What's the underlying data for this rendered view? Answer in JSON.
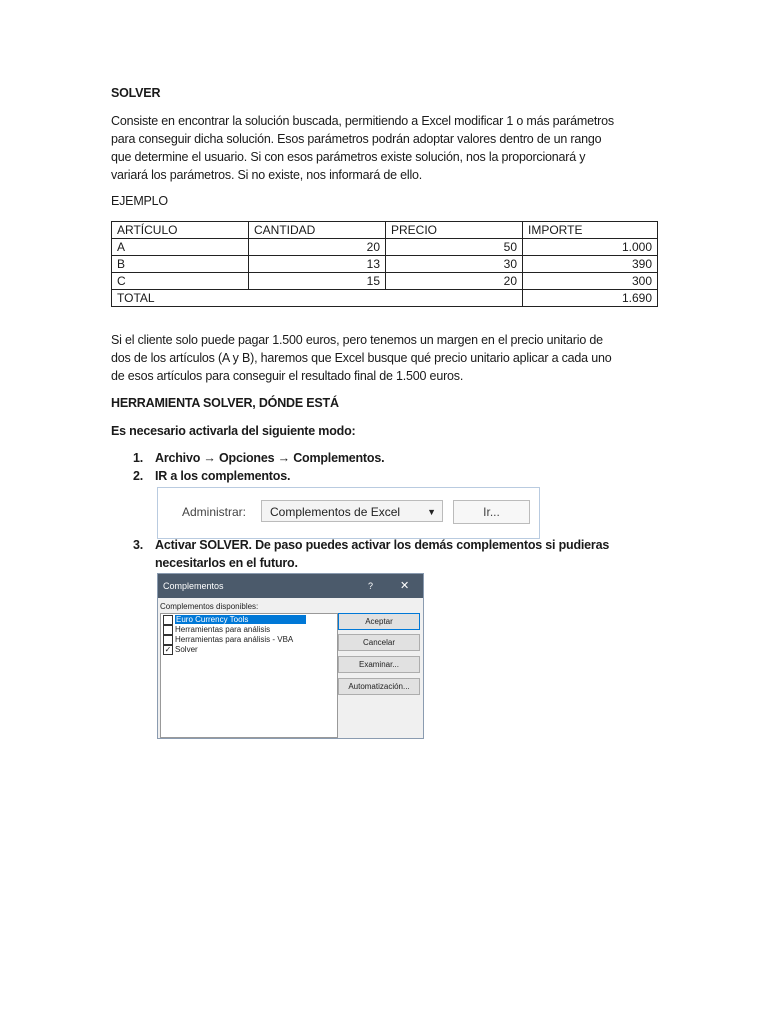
{
  "title": "SOLVER",
  "intro": [
    "Consiste en encontrar la solución buscada, permitiendo a Excel modificar 1 o más parámetros",
    "para conseguir dicha solución. Esos parámetros podrán adoptar valores dentro de un rango",
    "que determine el usuario. Si con esos parámetros existe solución, nos la proporcionará y",
    "variará los parámetros. Si no existe, nos informará de ello."
  ],
  "example_heading": "EJEMPLO",
  "table": {
    "headers": [
      "ARTÍCULO",
      "CANTIDAD",
      "PRECIO",
      "IMPORTE"
    ],
    "rows": [
      [
        "A",
        "20",
        "50",
        "1.000"
      ],
      [
        "B",
        "13",
        "30",
        "390"
      ],
      [
        "C",
        "15",
        "20",
        "300"
      ]
    ],
    "total_label": "TOTAL",
    "total_value": "1.690"
  },
  "scenario": [
    "Si el cliente solo puede pagar 1.500 euros, pero tenemos un margen en el precio unitario de",
    "dos de los artículos (A y B), haremos que Excel busque qué precio unitario aplicar a cada uno",
    "de esos artículos para conseguir el resultado final de 1.500 euros."
  ],
  "tool_heading": "HERRAMIENTA SOLVER, DÓNDE ESTÁ",
  "activate_intro": "Es necesario activarla del siguiente modo:",
  "steps": [
    {
      "num": "1.",
      "text": "Archivo → Opciones → Complementos."
    },
    {
      "num": "2.",
      "text": "IR a los complementos."
    },
    {
      "num": "3.",
      "text": "Activar SOLVER. De paso puedes activar los demás complementos si pudieras",
      "text2": "necesitarlos en el futuro."
    }
  ],
  "admin_bar": {
    "label": "Administrar:",
    "select_value": "Complementos de Excel",
    "go_button": "Ir..."
  },
  "dialog": {
    "title": "Complementos",
    "help": "?",
    "close": "✕",
    "list_label": "Complementos disponibles:",
    "items": [
      {
        "label": "Euro Currency Tools",
        "checked": false,
        "selected": true
      },
      {
        "label": "Herramientas para análisis",
        "checked": false
      },
      {
        "label": "Herramientas para análisis - VBA",
        "checked": false
      },
      {
        "label": "Solver",
        "checked": true
      }
    ],
    "buttons": {
      "ok": "Aceptar",
      "cancel": "Cancelar",
      "browse": "Examinar...",
      "automation": "Automatización..."
    }
  }
}
